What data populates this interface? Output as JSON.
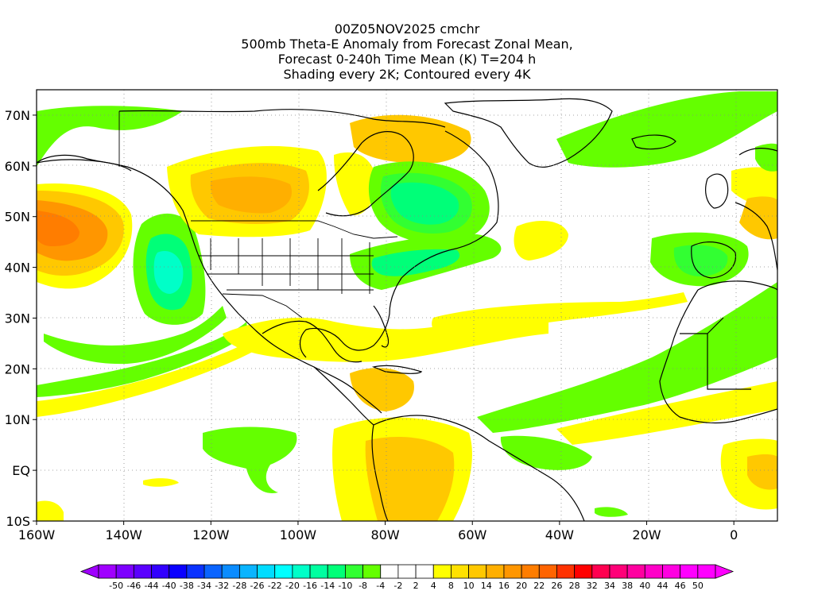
{
  "title": {
    "line1": "00Z05NOV2025 cmchr",
    "line2": "500mb Theta-E Anomaly from Forecast Zonal Mean,",
    "line3": "Forecast 0-240h Time Mean (K) T=204 h",
    "line4": "Shading every 2K; Contoured every 4K"
  },
  "axes": {
    "lat_labels": [
      "70N",
      "60N",
      "50N",
      "40N",
      "30N",
      "20N",
      "10N",
      "EQ",
      "10S"
    ],
    "lat_values": [
      70,
      60,
      50,
      40,
      30,
      20,
      10,
      0,
      -10
    ],
    "lon_labels": [
      "160W",
      "140W",
      "120W",
      "100W",
      "80W",
      "60W",
      "40W",
      "20W",
      "0"
    ],
    "lon_values": [
      -160,
      -140,
      -120,
      -100,
      -80,
      -60,
      -40,
      -20,
      0
    ],
    "lon_range": [
      -160,
      10
    ],
    "lat_range": [
      -10,
      75
    ]
  },
  "colorbar": {
    "labels": [
      "-50",
      "-46",
      "-44",
      "-40",
      "-38",
      "-34",
      "-32",
      "-28",
      "-26",
      "-22",
      "-20",
      "-16",
      "-14",
      "-10",
      "-8",
      "-4",
      "-2",
      "2",
      "4",
      "8",
      "10",
      "14",
      "16",
      "20",
      "22",
      "26",
      "28",
      "32",
      "34",
      "38",
      "40",
      "44",
      "46",
      "50"
    ],
    "colors": [
      "#a000ff",
      "#7d00ff",
      "#5a00ff",
      "#3200ff",
      "#0a00ff",
      "#0a32ff",
      "#0a64ff",
      "#0a8cff",
      "#0ab4ff",
      "#00dcff",
      "#00ffff",
      "#00ffc8",
      "#00ffa0",
      "#00ff78",
      "#32ff32",
      "#64ff00",
      "#ffffff",
      "#ffffff",
      "#ffffff",
      "#ffff00",
      "#ffe100",
      "#ffc800",
      "#ffaf00",
      "#ff9600",
      "#ff7d00",
      "#ff6400",
      "#ff3200",
      "#ff0000",
      "#ff0050",
      "#ff0078",
      "#ff00a0",
      "#ff00c8",
      "#ff00e1",
      "#ff00ff",
      "#ff00ff"
    ]
  },
  "map": {
    "region": "North America and Atlantic",
    "anomaly_features": [
      {
        "type": "warm",
        "level": 16,
        "lon": -152,
        "lat": 48
      },
      {
        "type": "cold",
        "level": -16,
        "lon": -130,
        "lat": 40
      },
      {
        "type": "warm",
        "level": 14,
        "lon": -112,
        "lat": 55
      },
      {
        "type": "cold",
        "level": -14,
        "lon": -70,
        "lat": 53
      },
      {
        "type": "cold",
        "level": -8,
        "lon": -65,
        "lat": 40
      },
      {
        "type": "cold",
        "level": -8,
        "lon": -20,
        "lat": 40
      },
      {
        "type": "cold",
        "level": -8,
        "lon": -30,
        "lat": 70
      },
      {
        "type": "warm",
        "level": 10,
        "lon": -70,
        "lat": 0
      }
    ]
  }
}
